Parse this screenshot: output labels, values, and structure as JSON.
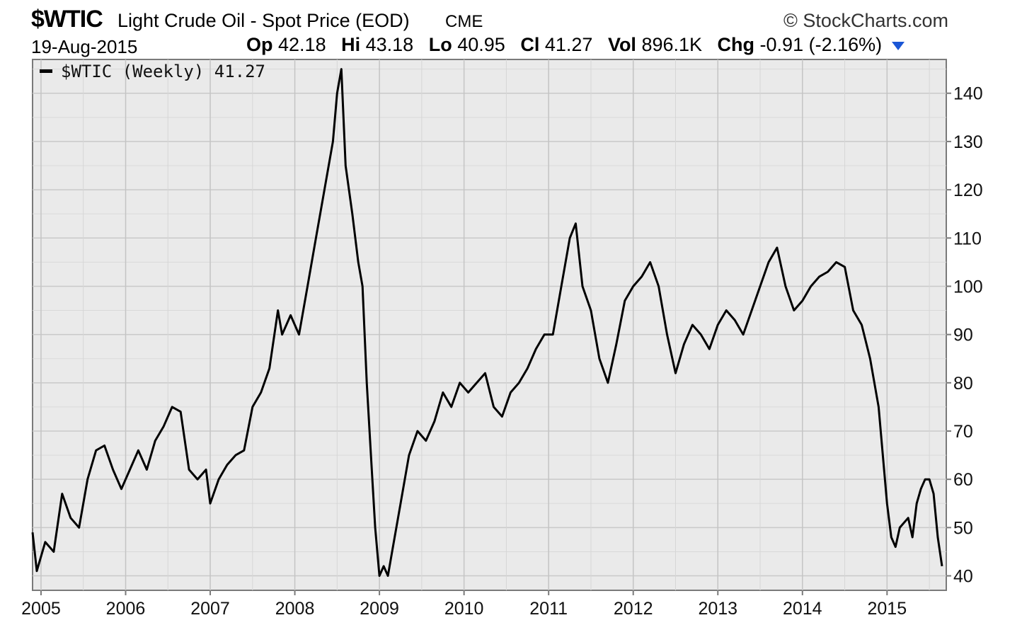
{
  "header": {
    "symbol": "$WTIC",
    "description": "Light Crude Oil - Spot Price (EOD)",
    "exchange": "CME",
    "brand": "© StockCharts.com",
    "date": "19-Aug-2015",
    "quote": [
      {
        "label": "Op",
        "value": "42.18"
      },
      {
        "label": "Hi",
        "value": "43.18"
      },
      {
        "label": "Lo",
        "value": "40.95"
      },
      {
        "label": "Cl",
        "value": "41.27"
      },
      {
        "label": "Vol",
        "value": "896.1K"
      },
      {
        "label": "Chg",
        "value": "-0.91 (-2.16%)"
      }
    ],
    "change_color": "#1a56d6"
  },
  "chart_data": {
    "type": "line",
    "legend": "$WTIC (Weekly) 41.27",
    "legend_placement": "top-left",
    "x_ticks": [
      "2005",
      "2006",
      "2007",
      "2008",
      "2009",
      "2010",
      "2011",
      "2012",
      "2013",
      "2014",
      "2015"
    ],
    "y_ticks": [
      40,
      50,
      60,
      70,
      80,
      90,
      100,
      110,
      120,
      130,
      140
    ],
    "ylim": [
      37,
      147
    ],
    "xlim": [
      2004.9,
      2015.7
    ],
    "grid": true,
    "line_color": "#000000",
    "series": [
      {
        "name": "$WTIC (Weekly)",
        "points": [
          [
            2004.9,
            49
          ],
          [
            2004.95,
            41
          ],
          [
            2005.05,
            47
          ],
          [
            2005.15,
            45
          ],
          [
            2005.25,
            57
          ],
          [
            2005.35,
            52
          ],
          [
            2005.45,
            50
          ],
          [
            2005.55,
            60
          ],
          [
            2005.65,
            66
          ],
          [
            2005.75,
            67
          ],
          [
            2005.85,
            62
          ],
          [
            2005.95,
            58
          ],
          [
            2006.05,
            62
          ],
          [
            2006.15,
            66
          ],
          [
            2006.25,
            62
          ],
          [
            2006.35,
            68
          ],
          [
            2006.45,
            71
          ],
          [
            2006.55,
            75
          ],
          [
            2006.65,
            74
          ],
          [
            2006.75,
            62
          ],
          [
            2006.85,
            60
          ],
          [
            2006.95,
            62
          ],
          [
            2007.0,
            55
          ],
          [
            2007.1,
            60
          ],
          [
            2007.2,
            63
          ],
          [
            2007.3,
            65
          ],
          [
            2007.4,
            66
          ],
          [
            2007.5,
            75
          ],
          [
            2007.6,
            78
          ],
          [
            2007.7,
            83
          ],
          [
            2007.8,
            95
          ],
          [
            2007.85,
            90
          ],
          [
            2007.95,
            94
          ],
          [
            2008.05,
            90
          ],
          [
            2008.15,
            100
          ],
          [
            2008.25,
            110
          ],
          [
            2008.35,
            120
          ],
          [
            2008.45,
            130
          ],
          [
            2008.5,
            140
          ],
          [
            2008.55,
            145
          ],
          [
            2008.6,
            125
          ],
          [
            2008.68,
            115
          ],
          [
            2008.75,
            105
          ],
          [
            2008.8,
            100
          ],
          [
            2008.85,
            80
          ],
          [
            2008.9,
            65
          ],
          [
            2008.95,
            50
          ],
          [
            2009.0,
            40
          ],
          [
            2009.05,
            42
          ],
          [
            2009.1,
            40
          ],
          [
            2009.15,
            45
          ],
          [
            2009.25,
            55
          ],
          [
            2009.35,
            65
          ],
          [
            2009.45,
            70
          ],
          [
            2009.55,
            68
          ],
          [
            2009.65,
            72
          ],
          [
            2009.75,
            78
          ],
          [
            2009.85,
            75
          ],
          [
            2009.95,
            80
          ],
          [
            2010.05,
            78
          ],
          [
            2010.15,
            80
          ],
          [
            2010.25,
            82
          ],
          [
            2010.35,
            75
          ],
          [
            2010.45,
            73
          ],
          [
            2010.55,
            78
          ],
          [
            2010.65,
            80
          ],
          [
            2010.75,
            83
          ],
          [
            2010.85,
            87
          ],
          [
            2010.95,
            90
          ],
          [
            2011.05,
            90
          ],
          [
            2011.15,
            100
          ],
          [
            2011.25,
            110
          ],
          [
            2011.32,
            113
          ],
          [
            2011.4,
            100
          ],
          [
            2011.5,
            95
          ],
          [
            2011.6,
            85
          ],
          [
            2011.7,
            80
          ],
          [
            2011.8,
            88
          ],
          [
            2011.9,
            97
          ],
          [
            2012.0,
            100
          ],
          [
            2012.1,
            102
          ],
          [
            2012.2,
            105
          ],
          [
            2012.3,
            100
          ],
          [
            2012.4,
            90
          ],
          [
            2012.5,
            82
          ],
          [
            2012.6,
            88
          ],
          [
            2012.7,
            92
          ],
          [
            2012.8,
            90
          ],
          [
            2012.9,
            87
          ],
          [
            2013.0,
            92
          ],
          [
            2013.1,
            95
          ],
          [
            2013.2,
            93
          ],
          [
            2013.3,
            90
          ],
          [
            2013.4,
            95
          ],
          [
            2013.5,
            100
          ],
          [
            2013.6,
            105
          ],
          [
            2013.7,
            108
          ],
          [
            2013.8,
            100
          ],
          [
            2013.9,
            95
          ],
          [
            2014.0,
            97
          ],
          [
            2014.1,
            100
          ],
          [
            2014.2,
            102
          ],
          [
            2014.3,
            103
          ],
          [
            2014.4,
            105
          ],
          [
            2014.5,
            104
          ],
          [
            2014.6,
            95
          ],
          [
            2014.7,
            92
          ],
          [
            2014.8,
            85
          ],
          [
            2014.9,
            75
          ],
          [
            2015.0,
            55
          ],
          [
            2015.05,
            48
          ],
          [
            2015.1,
            46
          ],
          [
            2015.15,
            50
          ],
          [
            2015.25,
            52
          ],
          [
            2015.3,
            48
          ],
          [
            2015.35,
            55
          ],
          [
            2015.4,
            58
          ],
          [
            2015.45,
            60
          ],
          [
            2015.5,
            60
          ],
          [
            2015.55,
            57
          ],
          [
            2015.6,
            48
          ],
          [
            2015.65,
            42
          ]
        ]
      }
    ]
  }
}
